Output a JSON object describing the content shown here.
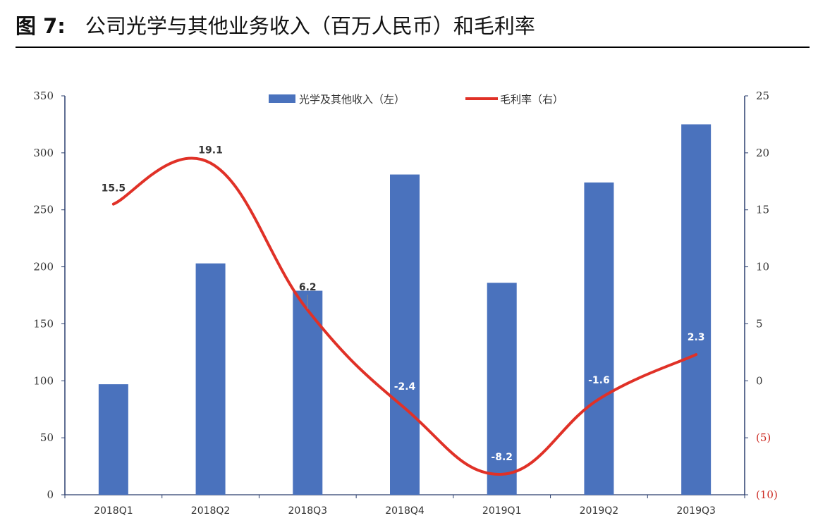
{
  "figure": {
    "label": "图 7:",
    "title": "公司光学与其他业务收入（百万人民币）和毛利率"
  },
  "chart_data": {
    "type": "bar+line",
    "categories": [
      "2018Q1",
      "2018Q2",
      "2018Q3",
      "2018Q4",
      "2019Q1",
      "2019Q2",
      "2019Q3"
    ],
    "series": [
      {
        "name": "光学及其他收入（左）",
        "type": "bar",
        "axis": "left",
        "color": "#4a72bd",
        "values": [
          97,
          203,
          179,
          281,
          186,
          274,
          325
        ]
      },
      {
        "name": "毛利率（右）",
        "type": "line",
        "axis": "right",
        "color": "#e03127",
        "values": [
          15.5,
          19.1,
          6.2,
          -2.4,
          -8.2,
          -1.6,
          2.3
        ],
        "labels": [
          "15.5",
          "19.1",
          "6.2",
          "-2.4",
          "-8.2",
          "-1.6",
          "2.3"
        ]
      }
    ],
    "y_left": {
      "min": 0,
      "max": 350,
      "ticks": [
        0,
        50,
        100,
        150,
        200,
        250,
        300,
        350
      ],
      "tick_labels": [
        "0",
        "50",
        "100",
        "150",
        "200",
        "250",
        "300",
        "350"
      ]
    },
    "y_right": {
      "min": -10,
      "max": 25,
      "ticks": [
        -10,
        -5,
        0,
        5,
        10,
        15,
        20,
        25
      ],
      "tick_labels": [
        "(10)",
        "(5)",
        "0",
        "5",
        "10",
        "15",
        "20",
        "25"
      ]
    },
    "legend_position": "top-center",
    "grid": false,
    "colors": {
      "bar": "#4a72bd",
      "line": "#e03127",
      "axis": "#2b3f6e",
      "negative_tick": "#cc2a22",
      "label_dark": "#333333",
      "label_light": "#ffffff"
    }
  }
}
